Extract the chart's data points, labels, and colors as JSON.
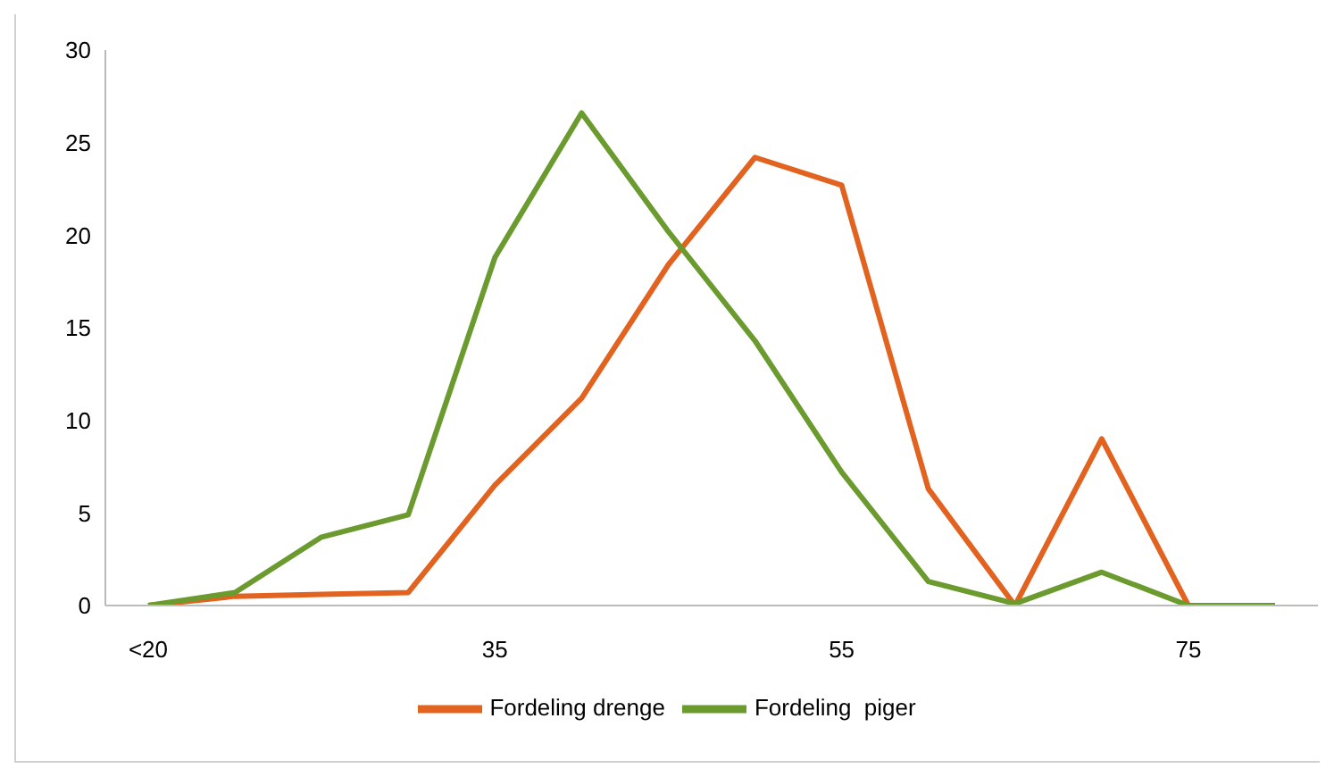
{
  "chart_data": {
    "type": "line",
    "categories": [
      "<20",
      null,
      null,
      null,
      "35",
      null,
      null,
      null,
      "55",
      null,
      null,
      null,
      "75",
      null
    ],
    "series": [
      {
        "name": "Fordeling drenge",
        "color": "#e2631f",
        "values": [
          0,
          0.5,
          0.6,
          0.7,
          6.5,
          11.2,
          18.4,
          24.2,
          22.7,
          6.3,
          0,
          9,
          0,
          null
        ]
      },
      {
        "name": "Fordeling  piger",
        "color": "#6b9a2e",
        "values": [
          0,
          0.7,
          3.7,
          4.9,
          18.8,
          26.6,
          20.2,
          14.3,
          7.2,
          1.3,
          0.1,
          1.8,
          0,
          0
        ]
      }
    ],
    "ylim": [
      0,
      30
    ],
    "yticks": [
      0,
      5,
      10,
      15,
      20,
      25,
      30
    ],
    "grid": false,
    "legend": "bottom",
    "marker": "none",
    "line_style": "solid"
  }
}
